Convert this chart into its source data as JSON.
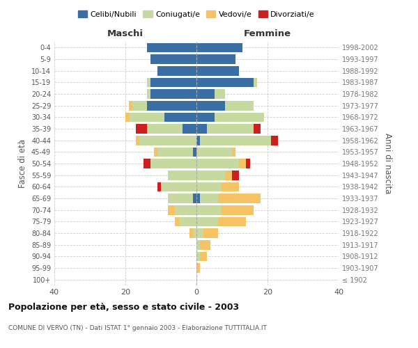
{
  "age_groups": [
    "100+",
    "95-99",
    "90-94",
    "85-89",
    "80-84",
    "75-79",
    "70-74",
    "65-69",
    "60-64",
    "55-59",
    "50-54",
    "45-49",
    "40-44",
    "35-39",
    "30-34",
    "25-29",
    "20-24",
    "15-19",
    "10-14",
    "5-9",
    "0-4"
  ],
  "birth_years": [
    "≤ 1902",
    "1903-1907",
    "1908-1912",
    "1913-1917",
    "1918-1922",
    "1923-1927",
    "1928-1932",
    "1933-1937",
    "1938-1942",
    "1943-1947",
    "1948-1952",
    "1953-1957",
    "1958-1962",
    "1963-1967",
    "1968-1972",
    "1973-1977",
    "1978-1982",
    "1983-1987",
    "1988-1992",
    "1993-1997",
    "1998-2002"
  ],
  "male": {
    "celibi": [
      0,
      0,
      0,
      0,
      0,
      0,
      0,
      1,
      0,
      0,
      0,
      1,
      0,
      4,
      9,
      14,
      13,
      13,
      11,
      13,
      14
    ],
    "coniugati": [
      0,
      0,
      0,
      0,
      1,
      5,
      6,
      7,
      10,
      8,
      13,
      10,
      16,
      10,
      10,
      4,
      1,
      1,
      0,
      0,
      0
    ],
    "vedovi": [
      0,
      0,
      0,
      0,
      1,
      1,
      2,
      0,
      0,
      0,
      0,
      1,
      1,
      0,
      1,
      1,
      0,
      0,
      0,
      0,
      0
    ],
    "divorziati": [
      0,
      0,
      0,
      0,
      0,
      0,
      0,
      0,
      1,
      0,
      2,
      0,
      0,
      3,
      0,
      0,
      0,
      0,
      0,
      0,
      0
    ]
  },
  "female": {
    "nubili": [
      0,
      0,
      0,
      0,
      0,
      0,
      0,
      1,
      0,
      0,
      0,
      0,
      1,
      3,
      5,
      8,
      5,
      16,
      12,
      11,
      13
    ],
    "coniugate": [
      0,
      0,
      1,
      1,
      2,
      6,
      7,
      5,
      7,
      8,
      12,
      10,
      20,
      13,
      14,
      8,
      3,
      1,
      0,
      0,
      0
    ],
    "vedove": [
      0,
      1,
      2,
      3,
      4,
      8,
      9,
      12,
      5,
      2,
      2,
      1,
      0,
      0,
      0,
      0,
      0,
      0,
      0,
      0,
      0
    ],
    "divorziate": [
      0,
      0,
      0,
      0,
      0,
      0,
      0,
      0,
      0,
      2,
      1,
      0,
      2,
      2,
      0,
      0,
      0,
      0,
      0,
      0,
      0
    ]
  },
  "colors": {
    "celibi_nubili": "#3A6EA5",
    "coniugati": "#C5D9A0",
    "vedovi": "#F5C264",
    "divorziati": "#CC2020"
  },
  "xlim": 40,
  "title": "Popolazione per età, sesso e stato civile - 2003",
  "subtitle": "COMUNE DI VERVÒ (TN) - Dati ISTAT 1° gennaio 2003 - Elaborazione TUTTITALIA.IT",
  "ylabel_left": "Fasce di età",
  "ylabel_right": "Anni di nascita",
  "legend_labels": [
    "Celibi/Nubili",
    "Coniugati/e",
    "Vedovi/e",
    "Divorziati/e"
  ],
  "background_color": "#ffffff",
  "grid_color": "#cccccc"
}
